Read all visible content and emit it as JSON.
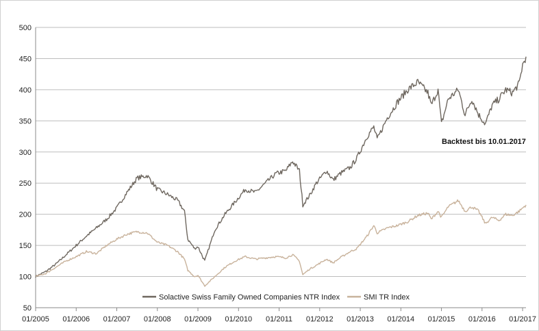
{
  "chart_data": {
    "type": "line",
    "title": "",
    "xlabel": "",
    "ylabel": "",
    "ylim": [
      50,
      500
    ],
    "yticks": [
      50,
      100,
      150,
      200,
      250,
      300,
      350,
      400,
      450,
      500
    ],
    "xlim": [
      "2005-01",
      "2017-02"
    ],
    "xticks": [
      "01/2005",
      "01/2006",
      "01/2007",
      "01/2008",
      "01/2009",
      "01/2010",
      "01/2011",
      "01/2012",
      "01/2013",
      "01/2014",
      "01/2015",
      "01/2016",
      "01/2017"
    ],
    "grid": "horizontal",
    "legend": "bottom-center",
    "annotation": "Backtest bis 10.01.2017",
    "series": [
      {
        "name": "Solactive Swiss Family Owned Companies NTR Index",
        "color": "#6e675f",
        "points": [
          [
            "2005-01",
            100
          ],
          [
            "2005-04",
            108
          ],
          [
            "2005-07",
            120
          ],
          [
            "2005-10",
            135
          ],
          [
            "2006-01",
            150
          ],
          [
            "2006-04",
            165
          ],
          [
            "2006-07",
            178
          ],
          [
            "2006-10",
            192
          ],
          [
            "2007-01",
            210
          ],
          [
            "2007-04",
            235
          ],
          [
            "2007-07",
            258
          ],
          [
            "2007-10",
            262
          ],
          [
            "2008-01",
            240
          ],
          [
            "2008-04",
            232
          ],
          [
            "2008-07",
            222
          ],
          [
            "2008-09",
            205
          ],
          [
            "2008-10",
            160
          ],
          [
            "2008-12",
            145
          ],
          [
            "2009-01",
            148
          ],
          [
            "2009-03",
            125
          ],
          [
            "2009-06",
            175
          ],
          [
            "2009-09",
            200
          ],
          [
            "2009-12",
            220
          ],
          [
            "2010-03",
            240
          ],
          [
            "2010-06",
            235
          ],
          [
            "2010-09",
            250
          ],
          [
            "2010-12",
            265
          ],
          [
            "2011-03",
            270
          ],
          [
            "2011-05",
            285
          ],
          [
            "2011-07",
            270
          ],
          [
            "2011-08",
            215
          ],
          [
            "2011-10",
            230
          ],
          [
            "2011-12",
            250
          ],
          [
            "2012-03",
            270
          ],
          [
            "2012-05",
            255
          ],
          [
            "2012-07",
            265
          ],
          [
            "2012-10",
            275
          ],
          [
            "2012-12",
            290
          ],
          [
            "2013-03",
            325
          ],
          [
            "2013-05",
            340
          ],
          [
            "2013-06",
            320
          ],
          [
            "2013-09",
            355
          ],
          [
            "2013-12",
            380
          ],
          [
            "2014-03",
            400
          ],
          [
            "2014-06",
            412
          ],
          [
            "2014-09",
            395
          ],
          [
            "2014-10",
            375
          ],
          [
            "2014-12",
            400
          ],
          [
            "2015-01",
            345
          ],
          [
            "2015-03",
            385
          ],
          [
            "2015-06",
            400
          ],
          [
            "2015-08",
            360
          ],
          [
            "2015-10",
            385
          ],
          [
            "2015-12",
            360
          ],
          [
            "2016-02",
            345
          ],
          [
            "2016-04",
            375
          ],
          [
            "2016-06",
            385
          ],
          [
            "2016-08",
            400
          ],
          [
            "2016-10",
            395
          ],
          [
            "2016-12",
            410
          ],
          [
            "2017-01",
            440
          ],
          [
            "2017-02",
            453
          ]
        ]
      },
      {
        "name": "SMI TR Index",
        "color": "#c8b29b",
        "points": [
          [
            "2005-01",
            100
          ],
          [
            "2005-04",
            105
          ],
          [
            "2005-07",
            115
          ],
          [
            "2005-10",
            125
          ],
          [
            "2006-01",
            132
          ],
          [
            "2006-04",
            140
          ],
          [
            "2006-07",
            137
          ],
          [
            "2006-10",
            150
          ],
          [
            "2007-01",
            160
          ],
          [
            "2007-04",
            168
          ],
          [
            "2007-07",
            172
          ],
          [
            "2007-10",
            170
          ],
          [
            "2008-01",
            155
          ],
          [
            "2008-04",
            150
          ],
          [
            "2008-07",
            140
          ],
          [
            "2008-09",
            128
          ],
          [
            "2008-10",
            110
          ],
          [
            "2008-12",
            100
          ],
          [
            "2009-01",
            102
          ],
          [
            "2009-03",
            85
          ],
          [
            "2009-06",
            100
          ],
          [
            "2009-09",
            115
          ],
          [
            "2009-12",
            125
          ],
          [
            "2010-03",
            132
          ],
          [
            "2010-06",
            128
          ],
          [
            "2010-09",
            130
          ],
          [
            "2010-12",
            132
          ],
          [
            "2011-03",
            130
          ],
          [
            "2011-05",
            135
          ],
          [
            "2011-07",
            125
          ],
          [
            "2011-08",
            103
          ],
          [
            "2011-10",
            112
          ],
          [
            "2011-12",
            118
          ],
          [
            "2012-03",
            128
          ],
          [
            "2012-05",
            122
          ],
          [
            "2012-07",
            130
          ],
          [
            "2012-10",
            140
          ],
          [
            "2012-12",
            145
          ],
          [
            "2013-03",
            165
          ],
          [
            "2013-05",
            182
          ],
          [
            "2013-06",
            170
          ],
          [
            "2013-09",
            178
          ],
          [
            "2013-12",
            182
          ],
          [
            "2014-03",
            188
          ],
          [
            "2014-06",
            198
          ],
          [
            "2014-09",
            202
          ],
          [
            "2014-10",
            192
          ],
          [
            "2014-12",
            205
          ],
          [
            "2015-01",
            195
          ],
          [
            "2015-03",
            212
          ],
          [
            "2015-06",
            222
          ],
          [
            "2015-08",
            205
          ],
          [
            "2015-10",
            212
          ],
          [
            "2015-12",
            205
          ],
          [
            "2016-02",
            185
          ],
          [
            "2016-04",
            195
          ],
          [
            "2016-06",
            190
          ],
          [
            "2016-08",
            200
          ],
          [
            "2016-10",
            198
          ],
          [
            "2016-12",
            205
          ],
          [
            "2017-01",
            210
          ],
          [
            "2017-02",
            215
          ]
        ]
      }
    ]
  }
}
